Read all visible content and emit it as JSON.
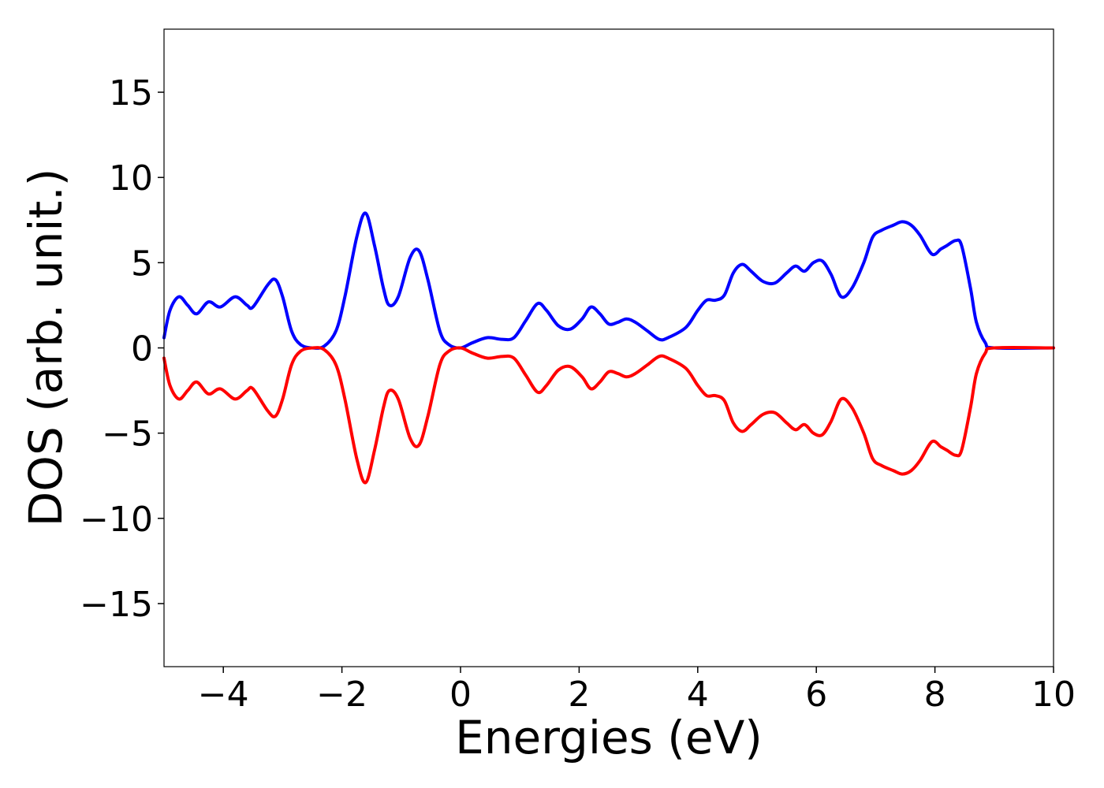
{
  "chart_data": {
    "type": "line",
    "title": "",
    "xlabel": "Energies (eV)",
    "ylabel": "DOS (arb. unit.)",
    "xlim": [
      -5,
      10
    ],
    "ylim": [
      -18.7,
      18.7
    ],
    "xticks": [
      -4,
      -2,
      0,
      2,
      4,
      6,
      8,
      10
    ],
    "xtick_labels": [
      "−4",
      "−2",
      "0",
      "2",
      "4",
      "6",
      "8",
      "10"
    ],
    "yticks": [
      15,
      10,
      5,
      0,
      -5,
      -10,
      -15
    ],
    "ytick_labels": [
      "15",
      "10",
      "5",
      "0",
      "−5",
      "−10",
      "−15"
    ],
    "grid": false,
    "legend": "none",
    "series": [
      {
        "color": "#0000ff",
        "points": [
          [
            -5.0,
            0.6
          ],
          [
            -4.9,
            2.2
          ],
          [
            -4.75,
            3.0
          ],
          [
            -4.6,
            2.5
          ],
          [
            -4.45,
            2.0
          ],
          [
            -4.25,
            2.7
          ],
          [
            -4.05,
            2.4
          ],
          [
            -3.8,
            3.0
          ],
          [
            -3.6,
            2.5
          ],
          [
            -3.5,
            2.4
          ],
          [
            -3.25,
            3.7
          ],
          [
            -3.12,
            4.0
          ],
          [
            -3.0,
            3.0
          ],
          [
            -2.85,
            1.0
          ],
          [
            -2.7,
            0.2
          ],
          [
            -2.5,
            0.0
          ],
          [
            -2.3,
            0.1
          ],
          [
            -2.1,
            1.0
          ],
          [
            -1.95,
            3.0
          ],
          [
            -1.75,
            6.5
          ],
          [
            -1.6,
            7.9
          ],
          [
            -1.45,
            6.0
          ],
          [
            -1.3,
            3.5
          ],
          [
            -1.2,
            2.5
          ],
          [
            -1.05,
            3.0
          ],
          [
            -0.85,
            5.3
          ],
          [
            -0.7,
            5.7
          ],
          [
            -0.55,
            4.0
          ],
          [
            -0.35,
            1.0
          ],
          [
            -0.2,
            0.2
          ],
          [
            0.0,
            0.0
          ],
          [
            0.2,
            0.3
          ],
          [
            0.45,
            0.6
          ],
          [
            0.7,
            0.5
          ],
          [
            0.9,
            0.6
          ],
          [
            1.1,
            1.6
          ],
          [
            1.3,
            2.6
          ],
          [
            1.45,
            2.2
          ],
          [
            1.65,
            1.3
          ],
          [
            1.85,
            1.1
          ],
          [
            2.05,
            1.7
          ],
          [
            2.2,
            2.4
          ],
          [
            2.35,
            2.0
          ],
          [
            2.5,
            1.4
          ],
          [
            2.65,
            1.5
          ],
          [
            2.8,
            1.7
          ],
          [
            2.95,
            1.5
          ],
          [
            3.15,
            1.0
          ],
          [
            3.35,
            0.5
          ],
          [
            3.5,
            0.6
          ],
          [
            3.8,
            1.2
          ],
          [
            4.0,
            2.2
          ],
          [
            4.15,
            2.8
          ],
          [
            4.3,
            2.8
          ],
          [
            4.45,
            3.1
          ],
          [
            4.6,
            4.4
          ],
          [
            4.75,
            4.9
          ],
          [
            4.9,
            4.5
          ],
          [
            5.1,
            3.9
          ],
          [
            5.3,
            3.8
          ],
          [
            5.5,
            4.4
          ],
          [
            5.65,
            4.8
          ],
          [
            5.8,
            4.5
          ],
          [
            5.95,
            5.0
          ],
          [
            6.1,
            5.1
          ],
          [
            6.25,
            4.3
          ],
          [
            6.42,
            3.0
          ],
          [
            6.6,
            3.5
          ],
          [
            6.8,
            5.0
          ],
          [
            6.95,
            6.5
          ],
          [
            7.1,
            6.9
          ],
          [
            7.3,
            7.2
          ],
          [
            7.45,
            7.4
          ],
          [
            7.6,
            7.2
          ],
          [
            7.75,
            6.6
          ],
          [
            7.95,
            5.5
          ],
          [
            8.1,
            5.8
          ],
          [
            8.2,
            6.0
          ],
          [
            8.35,
            6.3
          ],
          [
            8.45,
            6.0
          ],
          [
            8.6,
            3.5
          ],
          [
            8.7,
            1.5
          ],
          [
            8.85,
            0.3
          ],
          [
            9.0,
            0.0
          ],
          [
            10.0,
            0.0
          ]
        ]
      },
      {
        "color": "#ff0000",
        "points": [
          [
            -5.0,
            -0.6
          ],
          [
            -4.9,
            -2.2
          ],
          [
            -4.75,
            -3.0
          ],
          [
            -4.6,
            -2.5
          ],
          [
            -4.45,
            -2.0
          ],
          [
            -4.25,
            -2.7
          ],
          [
            -4.05,
            -2.4
          ],
          [
            -3.8,
            -3.0
          ],
          [
            -3.6,
            -2.5
          ],
          [
            -3.5,
            -2.4
          ],
          [
            -3.25,
            -3.7
          ],
          [
            -3.12,
            -4.0
          ],
          [
            -3.0,
            -3.0
          ],
          [
            -2.85,
            -1.0
          ],
          [
            -2.7,
            -0.2
          ],
          [
            -2.5,
            0.0
          ],
          [
            -2.3,
            -0.1
          ],
          [
            -2.1,
            -1.0
          ],
          [
            -1.95,
            -3.0
          ],
          [
            -1.75,
            -6.5
          ],
          [
            -1.6,
            -7.9
          ],
          [
            -1.45,
            -6.0
          ],
          [
            -1.3,
            -3.5
          ],
          [
            -1.2,
            -2.5
          ],
          [
            -1.05,
            -3.0
          ],
          [
            -0.85,
            -5.3
          ],
          [
            -0.7,
            -5.7
          ],
          [
            -0.55,
            -4.0
          ],
          [
            -0.35,
            -1.0
          ],
          [
            -0.2,
            -0.2
          ],
          [
            0.0,
            0.0
          ],
          [
            0.2,
            -0.3
          ],
          [
            0.45,
            -0.6
          ],
          [
            0.7,
            -0.5
          ],
          [
            0.9,
            -0.6
          ],
          [
            1.1,
            -1.6
          ],
          [
            1.3,
            -2.6
          ],
          [
            1.45,
            -2.2
          ],
          [
            1.65,
            -1.3
          ],
          [
            1.85,
            -1.1
          ],
          [
            2.05,
            -1.7
          ],
          [
            2.2,
            -2.4
          ],
          [
            2.35,
            -2.0
          ],
          [
            2.5,
            -1.4
          ],
          [
            2.65,
            -1.5
          ],
          [
            2.8,
            -1.7
          ],
          [
            2.95,
            -1.5
          ],
          [
            3.15,
            -1.0
          ],
          [
            3.35,
            -0.5
          ],
          [
            3.5,
            -0.6
          ],
          [
            3.8,
            -1.2
          ],
          [
            4.0,
            -2.2
          ],
          [
            4.15,
            -2.8
          ],
          [
            4.3,
            -2.8
          ],
          [
            4.45,
            -3.1
          ],
          [
            4.6,
            -4.4
          ],
          [
            4.75,
            -4.9
          ],
          [
            4.9,
            -4.5
          ],
          [
            5.1,
            -3.9
          ],
          [
            5.3,
            -3.8
          ],
          [
            5.5,
            -4.4
          ],
          [
            5.65,
            -4.8
          ],
          [
            5.8,
            -4.5
          ],
          [
            5.95,
            -5.0
          ],
          [
            6.1,
            -5.1
          ],
          [
            6.25,
            -4.3
          ],
          [
            6.42,
            -3.0
          ],
          [
            6.6,
            -3.5
          ],
          [
            6.8,
            -5.0
          ],
          [
            6.95,
            -6.5
          ],
          [
            7.1,
            -6.9
          ],
          [
            7.3,
            -7.2
          ],
          [
            7.45,
            -7.4
          ],
          [
            7.6,
            -7.2
          ],
          [
            7.75,
            -6.6
          ],
          [
            7.95,
            -5.5
          ],
          [
            8.1,
            -5.8
          ],
          [
            8.2,
            -6.0
          ],
          [
            8.35,
            -6.3
          ],
          [
            8.45,
            -6.0
          ],
          [
            8.6,
            -3.5
          ],
          [
            8.7,
            -1.5
          ],
          [
            8.85,
            -0.3
          ],
          [
            9.0,
            0.0
          ],
          [
            10.0,
            0.0
          ]
        ]
      }
    ]
  }
}
